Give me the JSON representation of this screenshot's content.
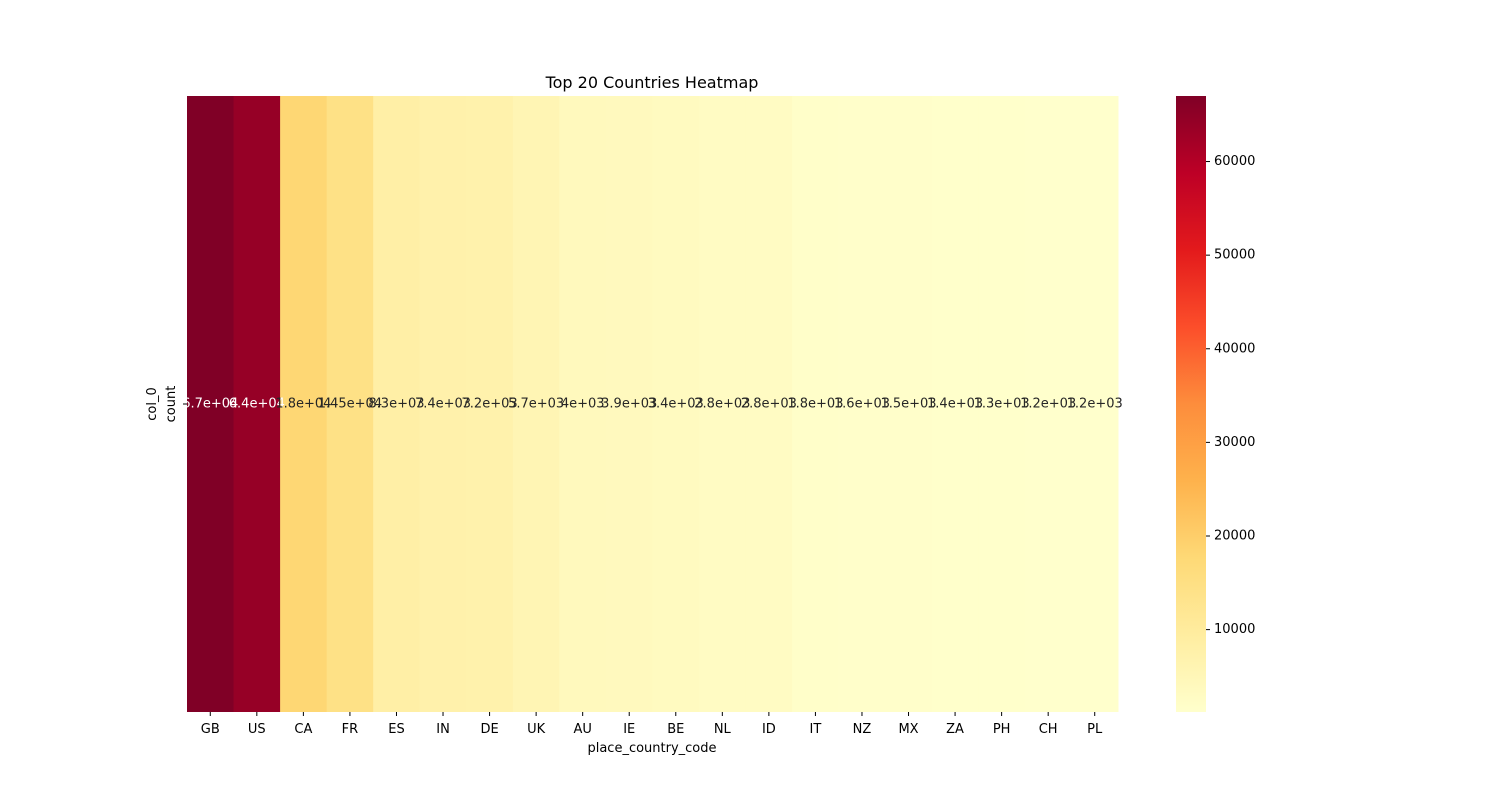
{
  "chart_data": {
    "type": "heatmap",
    "title": "Top 20 Countries Heatmap",
    "xlabel": "place_country_code",
    "ylabel": "col_0",
    "row_labels": [
      "count"
    ],
    "categories": [
      "GB",
      "US",
      "CA",
      "FR",
      "ES",
      "IN",
      "DE",
      "UK",
      "AU",
      "IE",
      "BE",
      "NL",
      "ID",
      "IT",
      "NZ",
      "MX",
      "ZA",
      "PH",
      "CH",
      "PL"
    ],
    "values": [
      67000,
      64000,
      18000,
      14500,
      8300,
      7400,
      7200,
      5700,
      4000,
      3900,
      3400,
      2800,
      2800,
      1800,
      1600,
      1500,
      1400,
      1300,
      1200,
      1200
    ],
    "annotations": [
      "6.7e+04",
      "6.4e+04",
      "1.8e+04",
      "1.45e+04",
      "8.3e+03",
      "7.4e+03",
      "7.2e+03",
      "5.7e+03",
      "4e+03",
      "3.9e+03",
      "3.4e+03",
      "2.8e+03",
      "2.8e+03",
      "1.8e+03",
      "1.6e+03",
      "1.5e+03",
      "1.4e+03",
      "1.3e+03",
      "1.2e+03",
      "1.2e+03"
    ],
    "colormap": "YlOrRd",
    "colorbar": {
      "vmin": 1200,
      "vmax": 67000,
      "ticks": [
        10000,
        20000,
        30000,
        40000,
        50000,
        60000
      ],
      "tick_labels": [
        "10000",
        "20000",
        "30000",
        "40000",
        "50000",
        "60000"
      ]
    },
    "grid": false,
    "legend": "colorbar-right"
  }
}
